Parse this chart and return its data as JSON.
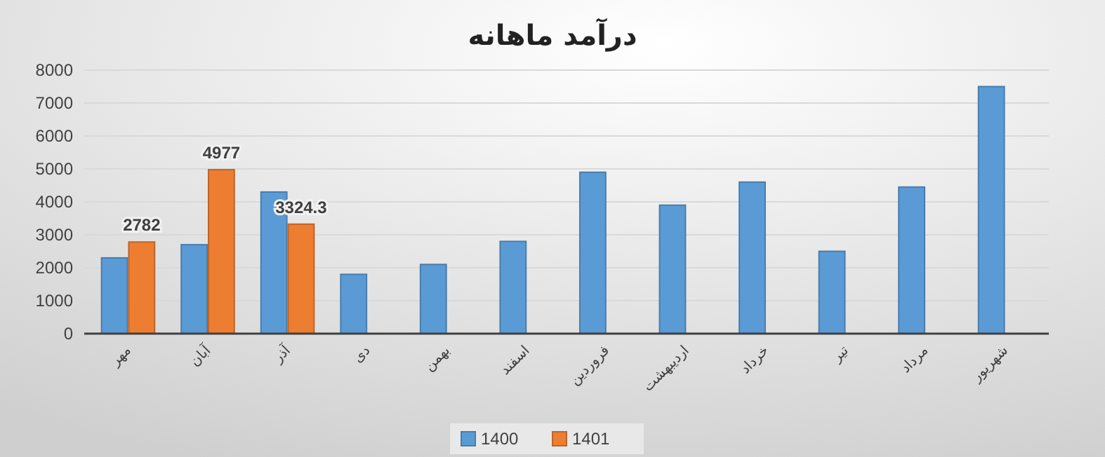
{
  "chart_data": {
    "type": "bar",
    "title": "درآمد ماهانه",
    "categories": [
      "مهر",
      "آبان",
      "آذر",
      "دی",
      "بهمن",
      "اسفند",
      "فروردین",
      "اردیبهشت",
      "خرداد",
      "تیر",
      "مرداد",
      "شهریور"
    ],
    "series": [
      {
        "name": "1400",
        "color": "#5b9bd5",
        "values": [
          2300,
          2700,
          4300,
          1800,
          2100,
          2800,
          4900,
          3900,
          4600,
          2500,
          4450,
          7500
        ]
      },
      {
        "name": "1401",
        "color": "#ed7d31",
        "values": [
          2782,
          4977,
          3324.3,
          null,
          null,
          null,
          null,
          null,
          null,
          null,
          null,
          null
        ],
        "value_labels": [
          "2782",
          "4977",
          "3324.3",
          null,
          null,
          null,
          null,
          null,
          null,
          null,
          null,
          null
        ]
      }
    ],
    "ylim": [
      0,
      8000
    ],
    "yticks": [
      0,
      1000,
      2000,
      3000,
      4000,
      5000,
      6000,
      7000,
      8000
    ],
    "grid": "y",
    "legend": "bottom"
  }
}
